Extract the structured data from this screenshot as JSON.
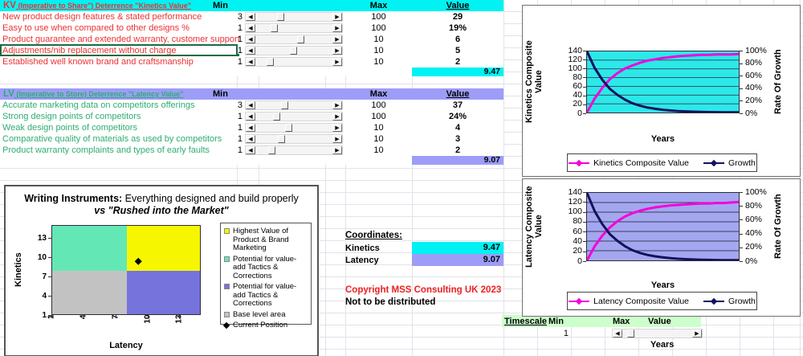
{
  "colors": {
    "cyan": "#00f2f2",
    "lavender": "#9d9df8",
    "green_band": "#ccffcc",
    "kv_text": "#ee3030",
    "lv_text": "#2ead72",
    "magenta": "#f500dc",
    "navy": "#12125e",
    "copyright_red": "#ee2222"
  },
  "kv_table": {
    "title_main": "KV",
    "title_sub": "(Imperative to Share\") Deterrence \"Kinetics Value\"",
    "headers": {
      "min": "Min",
      "max": "Max",
      "value": "Value"
    },
    "rows": [
      {
        "label": "New product design features & stated performance",
        "min": "3",
        "max": "100",
        "value": "29",
        "slider_pct": 30,
        "selected": false
      },
      {
        "label": "Easy to use when compared to other designs %",
        "min": "1",
        "max": "100",
        "value": "19%",
        "slider_pct": 21,
        "selected": false
      },
      {
        "label": "Product guarantee and extended warranty, customer support",
        "min": "1",
        "max": "10",
        "value": "6",
        "slider_pct": 58,
        "selected": false
      },
      {
        "label": "Adjustments/nib replacement without charge",
        "min": "1",
        "max": "10",
        "value": "5",
        "slider_pct": 48,
        "selected": true
      },
      {
        "label": "Established well known brand and craftsmanship",
        "min": "1",
        "max": "10",
        "value": "2",
        "slider_pct": 16,
        "selected": false
      }
    ],
    "total": "9.47"
  },
  "lv_table": {
    "title_main": "LV",
    "title_sub": "(Imperative to Store) Deterrence \"Latency Value\"",
    "headers": {
      "min": "Min",
      "max": "Max",
      "value": "Value"
    },
    "rows": [
      {
        "label": "Accurate marketing data on competitors offerings",
        "min": "3",
        "max": "100",
        "value": "37",
        "slider_pct": 36,
        "selected": false
      },
      {
        "label": "Strong design points of competitors",
        "min": "1",
        "max": "100",
        "value": "24%",
        "slider_pct": 25,
        "selected": false
      },
      {
        "label": "Weak design points of competitors",
        "min": "1",
        "max": "10",
        "value": "4",
        "slider_pct": 42,
        "selected": false
      },
      {
        "label": "Comparative quality of materials as used by competitors",
        "min": "1",
        "max": "10",
        "value": "3",
        "slider_pct": 31,
        "selected": false
      },
      {
        "label": "Product warranty complaints and types of early faults",
        "min": "1",
        "max": "10",
        "value": "2",
        "slider_pct": 18,
        "selected": false
      }
    ],
    "total": "9.07"
  },
  "coordinates": {
    "heading": "Coordinates:",
    "rows": [
      {
        "label": "Kinetics",
        "value": "9.47",
        "fill": "#00f2f2"
      },
      {
        "label": "Latency",
        "value": "9.07",
        "fill": "#9d9df8"
      }
    ]
  },
  "notices": {
    "line1": "Copyright MSS Consulting UK 2023",
    "line2": "Not to be distributed"
  },
  "timescale": {
    "label": "Timescale",
    "min_header": "Min",
    "max_header": "Max",
    "value_header": "Value",
    "min_value": "1",
    "slider_pct": 8,
    "axis_note": "Years"
  },
  "chart_data": [
    {
      "type": "scatter",
      "title_bold": "Writing Instruments:",
      "title_normal": " Everything designed and build properly",
      "title_line2": "vs \"Rushed into the Market\"",
      "xlabel": "Latency",
      "ylabel": "Kinetics",
      "xlim": [
        1,
        15
      ],
      "ylim": [
        1,
        15
      ],
      "xticks": [
        1,
        4,
        7,
        10,
        13
      ],
      "yticks": [
        1,
        4,
        7,
        10,
        13
      ],
      "split": {
        "x": 8,
        "y": 8
      },
      "quadrants": {
        "top_left": "#63e8b5",
        "top_right": "#f6f600",
        "bottom_left": "#c2c2c2",
        "bottom_right": "#7673dc"
      },
      "points": [
        {
          "x": 9.07,
          "y": 9.47
        }
      ],
      "legend": [
        {
          "marker": "square",
          "color": "#f6f600",
          "label": "Highest Value of Product & Brand Marketing"
        },
        {
          "marker": "square",
          "color": "#63e8b5",
          "label": "Potential for value-add Tactics & Corrections"
        },
        {
          "marker": "square",
          "color": "#7673dc",
          "label": "Potential for value-add Tactics & Corrections"
        },
        {
          "marker": "square",
          "color": "#c2c2c2",
          "label": "Base level area"
        },
        {
          "marker": "diamond",
          "color": "#000000",
          "label": "Current Position"
        }
      ]
    },
    {
      "type": "line",
      "plot_bg": "#2be9e9",
      "ylabel_left": "Kinetics Composite Value",
      "ylabel_right": "Rate Of Growth",
      "xlabel": "Years",
      "ylim_left": [
        0,
        140
      ],
      "yticks_left": [
        0,
        20,
        40,
        60,
        80,
        100,
        120,
        140
      ],
      "yticks_right": [
        "0%",
        "20%",
        "40%",
        "60%",
        "80%",
        "100%"
      ],
      "grid": true,
      "legend_position": "bottom",
      "x": [
        0,
        1,
        2,
        3,
        4,
        5,
        6,
        7,
        8,
        9,
        10,
        11,
        12,
        13,
        14,
        15,
        16,
        17,
        18,
        19,
        20
      ],
      "series": [
        {
          "name": "Kinetics Composite Value",
          "color": "#f500dc",
          "axis": "left",
          "values": [
            0,
            32,
            56,
            76,
            90,
            101,
            108,
            114,
            119,
            122,
            125,
            127,
            129,
            130,
            131,
            132,
            132,
            133,
            133,
            133,
            134
          ]
        },
        {
          "name": "Growth",
          "color": "#12125e",
          "axis": "right_pct",
          "values": [
            100,
            73,
            54,
            39,
            29,
            21,
            15,
            11,
            8,
            6,
            4.5,
            3.3,
            2.4,
            1.8,
            1.3,
            1,
            0.7,
            0.5,
            0.4,
            0.3,
            0.2
          ]
        }
      ]
    },
    {
      "type": "line",
      "plot_bg": "#a3a7f0",
      "ylabel_left": "Latency Composite Value",
      "ylabel_right": "Rate Of Growth",
      "xlabel": "Years",
      "ylim_left": [
        0,
        140
      ],
      "yticks_left": [
        0,
        20,
        40,
        60,
        80,
        100,
        120,
        140
      ],
      "yticks_right": [
        "0%",
        "20%",
        "40%",
        "60%",
        "80%",
        "100%"
      ],
      "grid": true,
      "legend_position": "bottom",
      "x": [
        0,
        1,
        2,
        3,
        4,
        5,
        6,
        7,
        8,
        9,
        10,
        11,
        12,
        13,
        14,
        15,
        16,
        17,
        18,
        19,
        20
      ],
      "series": [
        {
          "name": "Latency Composite Value",
          "color": "#f500dc",
          "axis": "left",
          "values": [
            0,
            29,
            51,
            68,
            81,
            91,
            98,
            103,
            107,
            110,
            112,
            114,
            115,
            116,
            117,
            118,
            118,
            119,
            119,
            120,
            121
          ]
        },
        {
          "name": "Growth",
          "color": "#12125e",
          "axis": "right_pct",
          "values": [
            100,
            73,
            54,
            39,
            29,
            21,
            15,
            11,
            8,
            6,
            4.5,
            3.3,
            2.4,
            1.8,
            1.3,
            1,
            0.7,
            0.5,
            0.4,
            0.3,
            0.2
          ]
        }
      ]
    }
  ]
}
